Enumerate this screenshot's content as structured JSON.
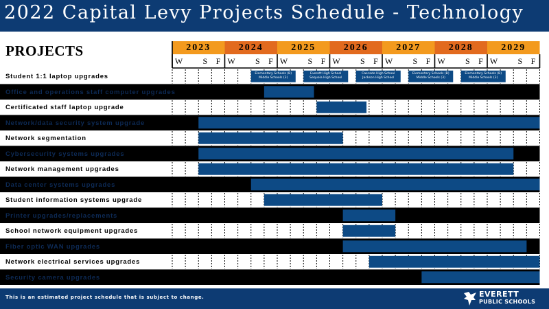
{
  "title": "2022 Capital Levy Projects Schedule - Technology",
  "projects_heading": "PROJECTS",
  "footer_note": "This is an estimated project schedule that is subject to change.",
  "logo": {
    "line1": "EVERETT",
    "line2": "PUBLIC SCHOOLS"
  },
  "colors": {
    "navy": "#0d3b73",
    "bar": "#0d4a85",
    "orange_light": "#f39a1e",
    "orange_dark": "#e26a1e",
    "dark_row": "#000000"
  },
  "chart_data": {
    "type": "gantt",
    "time_unit": "season",
    "years": [
      {
        "label": "2023",
        "seasons": [
          "W",
          "",
          "S",
          "F"
        ]
      },
      {
        "label": "2024",
        "seasons": [
          "W",
          "",
          "S",
          "F"
        ]
      },
      {
        "label": "2025",
        "seasons": [
          "W",
          "",
          "S",
          "F"
        ]
      },
      {
        "label": "2026",
        "seasons": [
          "W",
          "",
          "S",
          "F"
        ]
      },
      {
        "label": "2027",
        "seasons": [
          "W",
          "",
          "S",
          "F"
        ]
      },
      {
        "label": "2028",
        "seasons": [
          "W",
          "",
          "S",
          "F"
        ]
      },
      {
        "label": "2029",
        "seasons": [
          "W",
          "",
          "S",
          "F"
        ]
      }
    ],
    "rows": [
      {
        "name": "Student 1:1 laptop upgrades",
        "tone": "light",
        "bars": [
          {
            "start": 2024.5,
            "end": 2025.35,
            "text": [
              "Elementary Schools (B)",
              "Middle Schools (3)"
            ]
          },
          {
            "start": 2025.5,
            "end": 2026.35,
            "text": [
              "Everett High School",
              "Sequoia High School"
            ]
          },
          {
            "start": 2026.5,
            "end": 2027.35,
            "text": [
              "Cascade High School",
              "Jackson High School"
            ]
          },
          {
            "start": 2027.5,
            "end": 2028.35,
            "text": [
              "Elementary Schools (B)",
              "Middle Schools (3)"
            ]
          },
          {
            "start": 2028.5,
            "end": 2029.35,
            "text": [
              "Elementary Schools (B)",
              "Middle Schools (3)"
            ]
          }
        ]
      },
      {
        "name": "Office and operations staff computer upgrades",
        "tone": "dark",
        "bars": [
          {
            "start": 2024.75,
            "end": 2025.7
          }
        ]
      },
      {
        "name": "Certificated staff laptop upgrade",
        "tone": "light",
        "bars": [
          {
            "start": 2025.75,
            "end": 2026.7
          }
        ]
      },
      {
        "name": "Network/data security system upgrade",
        "tone": "dark",
        "bars": [
          {
            "start": 2023.5,
            "end": 2030.0
          }
        ]
      },
      {
        "name": "Network segmentation",
        "tone": "light",
        "bars": [
          {
            "start": 2023.5,
            "end": 2026.25
          }
        ]
      },
      {
        "name": "Cybersecurity systems upgrades",
        "tone": "dark",
        "bars": [
          {
            "start": 2023.5,
            "end": 2029.5
          }
        ]
      },
      {
        "name": "Network management upgrades",
        "tone": "light",
        "bars": [
          {
            "start": 2023.5,
            "end": 2029.5
          }
        ]
      },
      {
        "name": "Data center systems upgrades",
        "tone": "dark",
        "bars": [
          {
            "start": 2024.5,
            "end": 2030.0
          }
        ]
      },
      {
        "name": "Student information systems upgrade",
        "tone": "light",
        "bars": [
          {
            "start": 2024.75,
            "end": 2027.0
          }
        ]
      },
      {
        "name": "Printer upgrades/replacements",
        "tone": "dark",
        "bars": [
          {
            "start": 2026.25,
            "end": 2027.25
          }
        ]
      },
      {
        "name": "School network equipment upgrades",
        "tone": "light",
        "bars": [
          {
            "start": 2026.25,
            "end": 2027.25
          }
        ]
      },
      {
        "name": "Fiber optic WAN upgrades",
        "tone": "dark",
        "bars": [
          {
            "start": 2026.25,
            "end": 2029.75
          }
        ]
      },
      {
        "name": "Network electrical services upgrades",
        "tone": "light",
        "bars": [
          {
            "start": 2026.75,
            "end": 2030.0
          }
        ]
      },
      {
        "name": "Security camera upgrades",
        "tone": "dark",
        "bars": [
          {
            "start": 2027.75,
            "end": 2030.0
          }
        ]
      }
    ]
  }
}
